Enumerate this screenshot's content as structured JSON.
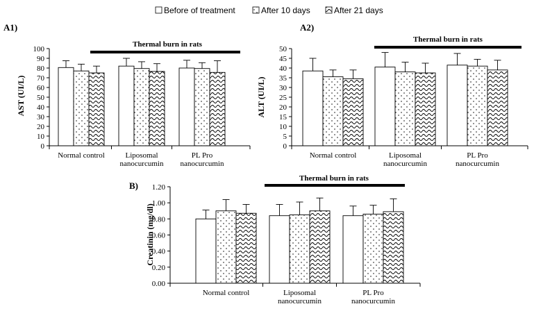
{
  "legend": {
    "items": [
      {
        "label": "Before of treatment",
        "pattern": "plain"
      },
      {
        "label": "After 10 days",
        "pattern": "dots"
      },
      {
        "label": "After 21 days",
        "pattern": "waves"
      }
    ]
  },
  "chart_data": [
    {
      "panel": "A1)",
      "type": "bar",
      "ylabel": "AST (UI/L)",
      "banner": "Thermal burn in rats",
      "ylim": [
        0,
        100
      ],
      "yticks": [
        "0",
        "10",
        "20",
        "30",
        "40",
        "50",
        "60",
        "70",
        "80",
        "90",
        "100"
      ],
      "categories": [
        [
          "Normal control"
        ],
        [
          "Liposomal",
          "nanocurcumin"
        ],
        [
          "PL Pro",
          "nanocurcumin"
        ]
      ],
      "series": [
        {
          "name": "Before of treatment",
          "values": [
            80.5,
            82,
            80
          ],
          "errors": [
            7,
            8,
            8
          ]
        },
        {
          "name": "After 10 days",
          "values": [
            77,
            79.5,
            79.5
          ],
          "errors": [
            7,
            7,
            6
          ]
        },
        {
          "name": "After 21 days",
          "values": [
            75,
            76.5,
            75.5
          ],
          "errors": [
            7,
            8,
            12
          ]
        }
      ]
    },
    {
      "panel": "A2)",
      "type": "bar",
      "ylabel": "ALT (UI/L)",
      "banner": "Thermal burn in rats",
      "ylim": [
        0,
        50
      ],
      "yticks": [
        "0",
        "5",
        "10",
        "15",
        "20",
        "25",
        "30",
        "35",
        "40",
        "45",
        "50"
      ],
      "categories": [
        [
          "Normal control"
        ],
        [
          "Liposomal",
          "nanocurcumin"
        ],
        [
          "PL Pro",
          "nanocurcumin"
        ]
      ],
      "series": [
        {
          "name": "Before of treatment",
          "values": [
            38.5,
            40.5,
            41.5
          ],
          "errors": [
            6.5,
            7.5,
            6
          ]
        },
        {
          "name": "After 10 days",
          "values": [
            35.5,
            38,
            41
          ],
          "errors": [
            3.5,
            5,
            3.5
          ]
        },
        {
          "name": "After 21 days",
          "values": [
            34.5,
            37.5,
            39
          ],
          "errors": [
            4.5,
            5,
            5
          ]
        }
      ]
    },
    {
      "panel": "B)",
      "type": "bar",
      "ylabel": "Creatinin (mg/dl)",
      "banner": "Thermal burn in rats",
      "ylim": [
        0,
        1.2
      ],
      "yticks": [
        "0.00",
        "0.20",
        "0.40",
        "0.60",
        "0.80",
        "1.00",
        "1.20"
      ],
      "categories": [
        [
          "Normal control"
        ],
        [
          "Liposomal",
          "nanocurcumin"
        ],
        [
          "PL Pro",
          "nanocurcumin"
        ]
      ],
      "series": [
        {
          "name": "Before of treatment",
          "values": [
            0.8,
            0.84,
            0.84
          ],
          "errors": [
            0.11,
            0.14,
            0.12
          ]
        },
        {
          "name": "After 10 days",
          "values": [
            0.9,
            0.85,
            0.86
          ],
          "errors": [
            0.14,
            0.16,
            0.11
          ]
        },
        {
          "name": "After 21 days",
          "values": [
            0.87,
            0.9,
            0.89
          ],
          "errors": [
            0.11,
            0.16,
            0.16
          ]
        }
      ]
    }
  ]
}
